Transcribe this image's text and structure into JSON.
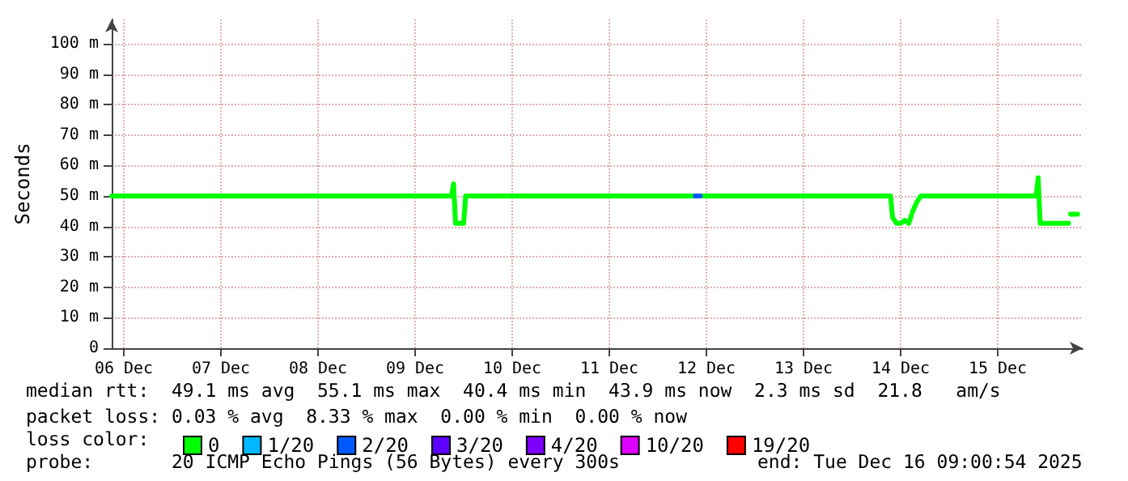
{
  "chart_data": {
    "type": "line",
    "ylabel": "Seconds",
    "legend_title": "loss color:",
    "xlim": [
      "2025-12-06T09:00",
      "2025-12-16T09:00"
    ],
    "xticks": [
      {
        "value": "2025-12-06T12:00",
        "label": "06 Dec"
      },
      {
        "value": "2025-12-07T12:00",
        "label": "07 Dec"
      },
      {
        "value": "2025-12-08T12:00",
        "label": "08 Dec"
      },
      {
        "value": "2025-12-09T12:00",
        "label": "09 Dec"
      },
      {
        "value": "2025-12-10T12:00",
        "label": "10 Dec"
      },
      {
        "value": "2025-12-11T12:00",
        "label": "11 Dec"
      },
      {
        "value": "2025-12-12T12:00",
        "label": "12 Dec"
      },
      {
        "value": "2025-12-13T12:00",
        "label": "13 Dec"
      },
      {
        "value": "2025-12-14T12:00",
        "label": "14 Dec"
      },
      {
        "value": "2025-12-15T12:00",
        "label": "15 Dec"
      }
    ],
    "ylim": [
      0,
      108
    ],
    "yticks": [
      0,
      {
        "value": 10,
        "label": "10 m"
      },
      {
        "value": 20,
        "label": "20 m"
      },
      {
        "value": 30,
        "label": "30 m"
      },
      {
        "value": 40,
        "label": "40 m"
      },
      {
        "value": 50,
        "label": "50 m"
      },
      {
        "value": 60,
        "label": "60 m"
      },
      {
        "value": 70,
        "label": "70 m"
      },
      {
        "value": 80,
        "label": "80 m"
      },
      {
        "value": 90,
        "label": "90 m"
      },
      {
        "value": 100,
        "label": "100 m"
      }
    ],
    "grid": true,
    "legend": "bottom left",
    "marker": "none",
    "line_style": "solid",
    "series": [
      {
        "name": "0",
        "color": "#00ff00",
        "x": [
          "2025-12-06T09:00",
          "2025-12-09T21:00",
          "2025-12-09T21:30",
          "2025-12-09T22:00",
          "2025-12-10T00:00",
          "2025-12-10T00:30",
          "2025-12-14T09:30",
          "2025-12-14T10:00",
          "2025-12-14T11:00",
          "2025-12-14T12:00",
          "2025-12-14T13:00",
          "2025-12-14T14:00",
          "2025-12-14T15:00",
          "2025-12-14T16:00",
          "2025-12-14T17:00",
          "2025-12-15T21:30",
          "2025-12-15T22:00",
          "2025-12-15T22:30",
          "2025-12-16T05:30",
          "2025-12-16T05:45",
          "2025-12-16T06:00",
          "2025-12-16T07:45"
        ],
        "values": [
          50,
          50,
          54,
          41,
          41,
          50,
          50,
          43,
          41,
          41,
          42,
          41,
          45,
          48,
          50,
          50,
          56,
          41,
          41,
          null,
          44,
          44
        ]
      },
      {
        "name": "1/20",
        "color": "#00b8ff"
      },
      {
        "name": "2/20",
        "color": "#0059ff",
        "x": [
          "2025-12-12T09:15",
          "2025-12-12T10:30"
        ],
        "values": [
          50,
          50
        ]
      },
      {
        "name": "3/20",
        "color": "#5e00ff"
      },
      {
        "name": "4/20",
        "color": "#7e00ff"
      },
      {
        "name": "10/20",
        "color": "#dd00ff"
      },
      {
        "name": "19/20",
        "color": "#ff0000"
      }
    ],
    "annotations": [
      "median rtt:  49.1 ms avg  55.1 ms max  40.4 ms min  43.9 ms now  2.3 ms sd  21.8   am/s",
      "packet loss: 0.03 % avg  8.33 % max  0.00 % min  0.00 % now",
      "probe:       20 ICMP Echo Pings (56 Bytes) every 300s",
      "end: Tue Dec 16 09:00:54 2025"
    ]
  }
}
